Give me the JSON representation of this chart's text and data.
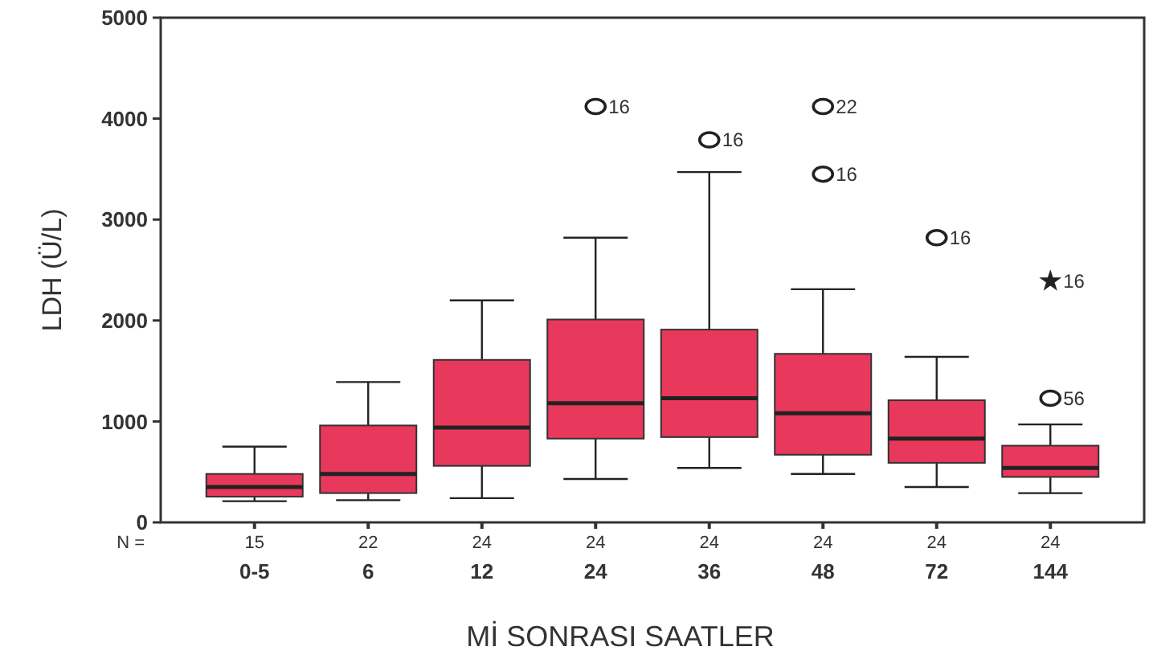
{
  "chart_data": {
    "type": "box",
    "xlabel": "Mİ SONRASI SAATLER",
    "ylabel": "LDH (Ü/L)",
    "categories": [
      "0-5",
      "6",
      "12",
      "24",
      "36",
      "48",
      "72",
      "144"
    ],
    "ylim": [
      0,
      5000
    ],
    "yticks": [
      0,
      1000,
      2000,
      3000,
      4000,
      5000
    ],
    "grid": false,
    "series": [
      {
        "color": "#e8385c",
        "boxes": [
          {
            "low": 210,
            "q1": 255,
            "median": 350,
            "q3": 480,
            "high": 750
          },
          {
            "low": 220,
            "q1": 290,
            "median": 480,
            "q3": 960,
            "high": 1390
          },
          {
            "low": 240,
            "q1": 560,
            "median": 940,
            "q3": 1610,
            "high": 2200
          },
          {
            "low": 430,
            "q1": 830,
            "median": 1180,
            "q3": 2010,
            "high": 2820
          },
          {
            "low": 540,
            "q1": 845,
            "median": 1230,
            "q3": 1910,
            "high": 3470
          },
          {
            "low": 480,
            "q1": 670,
            "median": 1080,
            "q3": 1670,
            "high": 2310
          },
          {
            "low": 350,
            "q1": 590,
            "median": 830,
            "q3": 1210,
            "high": 1640
          },
          {
            "low": 290,
            "q1": 450,
            "median": 540,
            "q3": 760,
            "high": 970
          }
        ]
      },
      {
        "type": "scatter",
        "marker": "circle",
        "color": "#222222",
        "x": [
          "24",
          "36",
          "48",
          "48",
          "72",
          "144"
        ],
        "values": [
          4120,
          3790,
          4120,
          3450,
          2820,
          1230
        ]
      },
      {
        "type": "scatter",
        "marker": "star",
        "color": "#222222",
        "x": [
          "144"
        ],
        "values": [
          2390
        ]
      }
    ],
    "annotations": [
      {
        "text": "16",
        "x": "24",
        "y": 4120
      },
      {
        "text": "16",
        "x": "36",
        "y": 3790
      },
      {
        "text": "22",
        "x": "48",
        "y": 4120
      },
      {
        "text": "16",
        "x": "48",
        "y": 3450
      },
      {
        "text": "16",
        "x": "72",
        "y": 2820
      },
      {
        "text": "16",
        "x": "144",
        "y": 2390
      },
      {
        "text": "56",
        "x": "144",
        "y": 1230
      },
      "N =",
      "15",
      "22",
      "24",
      "24",
      "24",
      "24",
      "24",
      "24"
    ]
  }
}
